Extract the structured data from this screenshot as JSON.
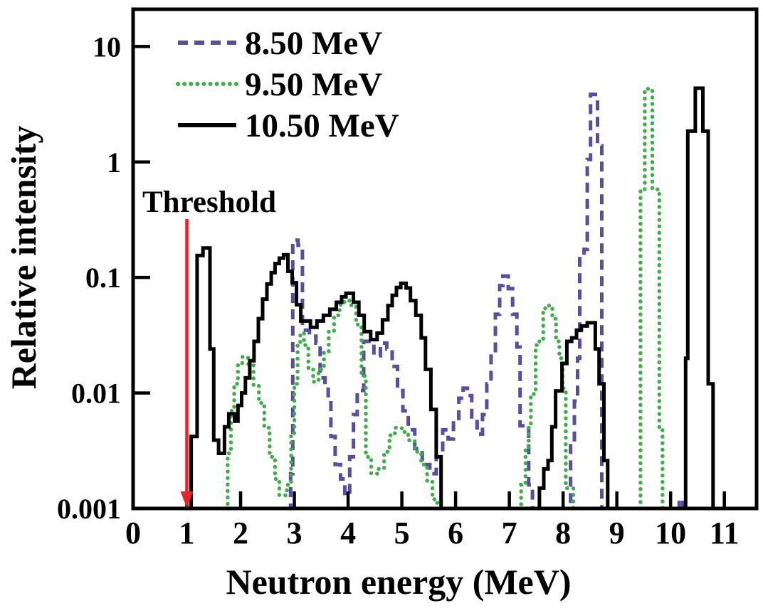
{
  "figure": {
    "background": "#ffffff",
    "frame_color": "#000000"
  },
  "chart_data": {
    "type": "step-histogram",
    "title": "",
    "xlabel": "Neutron energy (MeV)",
    "ylabel": "Relative intensity",
    "y_scale": "log",
    "xlim": [
      0,
      11.6
    ],
    "ylim": [
      0.001,
      21
    ],
    "grid": "off",
    "legend_position": "top-left-inside",
    "x_tick_values": [
      0,
      1,
      2,
      3,
      4,
      5,
      6,
      7,
      8,
      9,
      10,
      11
    ],
    "x_tick_labels": [
      "0",
      "1",
      "2",
      "3",
      "4",
      "5",
      "6",
      "7",
      "8",
      "9",
      "10",
      "11"
    ],
    "y_tick_values": [
      10,
      1,
      0.1,
      0.01,
      0.001
    ],
    "y_tick_labels": [
      "10",
      "1",
      "0.1",
      "0.01",
      "0.001"
    ],
    "threshold": {
      "label": "Threshold",
      "x": 1.0,
      "color": "#e8212a"
    },
    "below_axis_value": 0.0007,
    "levels_format": "each entry [energy_MeV, intensity]; intensity holds until next entry; 0.0007 means below visible axis",
    "series": [
      {
        "name": "8.50 MeV",
        "color": "#584da0",
        "style": "dashed",
        "dash": "14 9",
        "width": 5,
        "levels": [
          [
            2.93,
            0.002
          ],
          [
            2.97,
            0.21
          ],
          [
            3.07,
            0.19
          ],
          [
            3.15,
            0.035
          ],
          [
            3.28,
            0.031
          ],
          [
            3.4,
            0.027
          ],
          [
            3.48,
            0.0135
          ],
          [
            3.57,
            0.0115
          ],
          [
            3.63,
            0.0095
          ],
          [
            3.68,
            0.0042
          ],
          [
            3.76,
            0.0024
          ],
          [
            3.86,
            0.0018
          ],
          [
            3.94,
            0.0013
          ],
          [
            4.03,
            0.0028
          ],
          [
            4.1,
            0.0065
          ],
          [
            4.17,
            0.0105
          ],
          [
            4.29,
            0.028
          ],
          [
            4.48,
            0.021
          ],
          [
            4.6,
            0.027
          ],
          [
            4.72,
            0.024
          ],
          [
            4.82,
            0.017
          ],
          [
            4.92,
            0.0105
          ],
          [
            5.02,
            0.007
          ],
          [
            5.12,
            0.0048
          ],
          [
            5.24,
            0.0033
          ],
          [
            5.38,
            0.0024
          ],
          [
            5.52,
            0.002
          ],
          [
            5.64,
            0.0028
          ],
          [
            5.76,
            0.0048
          ],
          [
            5.86,
            0.004
          ],
          [
            5.96,
            0.0058
          ],
          [
            6.06,
            0.009
          ],
          [
            6.14,
            0.011
          ],
          [
            6.22,
            0.0095
          ],
          [
            6.3,
            0.0062
          ],
          [
            6.4,
            0.0044
          ],
          [
            6.5,
            0.0065
          ],
          [
            6.58,
            0.012
          ],
          [
            6.66,
            0.022
          ],
          [
            6.74,
            0.048
          ],
          [
            6.82,
            0.085
          ],
          [
            6.88,
            0.103
          ],
          [
            6.98,
            0.08
          ],
          [
            7.06,
            0.048
          ],
          [
            7.14,
            0.025
          ],
          [
            7.2,
            0.0052
          ],
          [
            7.36,
            0.0016
          ],
          [
            7.43,
            0.0007
          ],
          [
            8.14,
            0.0038
          ],
          [
            8.21,
            0.0085
          ],
          [
            8.27,
            0.02
          ],
          [
            8.31,
            0.155
          ],
          [
            8.39,
            0.175
          ],
          [
            8.45,
            1.05
          ],
          [
            8.51,
            3.85
          ],
          [
            8.64,
            1.38
          ],
          [
            8.72,
            0.0007
          ],
          [
            10.16,
            0.0012
          ],
          [
            10.23,
            0.0007
          ]
        ]
      },
      {
        "name": "9.50 MeV",
        "color": "#3fae4a",
        "style": "dotted",
        "dash": "0.1 9",
        "width": 5.5,
        "levels": [
          [
            1.76,
            0.003
          ],
          [
            1.82,
            0.007
          ],
          [
            1.88,
            0.012
          ],
          [
            1.95,
            0.018
          ],
          [
            2.03,
            0.0205
          ],
          [
            2.14,
            0.0178
          ],
          [
            2.24,
            0.0115
          ],
          [
            2.34,
            0.0082
          ],
          [
            2.44,
            0.005
          ],
          [
            2.54,
            0.0028
          ],
          [
            2.64,
            0.0018
          ],
          [
            2.72,
            0.0013
          ],
          [
            2.86,
            0.0016
          ],
          [
            2.94,
            0.0045
          ],
          [
            3.0,
            0.012
          ],
          [
            3.06,
            0.027
          ],
          [
            3.11,
            0.033
          ],
          [
            3.18,
            0.026
          ],
          [
            3.26,
            0.0165
          ],
          [
            3.35,
            0.0125
          ],
          [
            3.45,
            0.016
          ],
          [
            3.55,
            0.023
          ],
          [
            3.64,
            0.034
          ],
          [
            3.74,
            0.047
          ],
          [
            3.84,
            0.058
          ],
          [
            3.93,
            0.063
          ],
          [
            4.06,
            0.056
          ],
          [
            4.15,
            0.039
          ],
          [
            4.25,
            0.014
          ],
          [
            4.33,
            0.0028
          ],
          [
            4.43,
            0.002
          ],
          [
            4.55,
            0.0022
          ],
          [
            4.67,
            0.0031
          ],
          [
            4.77,
            0.0043
          ],
          [
            4.87,
            0.005
          ],
          [
            5.0,
            0.0046
          ],
          [
            5.12,
            0.0039
          ],
          [
            5.24,
            0.0031
          ],
          [
            5.36,
            0.0024
          ],
          [
            5.47,
            0.0017
          ],
          [
            5.57,
            0.0012
          ],
          [
            5.66,
            0.0007
          ],
          [
            7.22,
            0.0016
          ],
          [
            7.3,
            0.0032
          ],
          [
            7.36,
            0.005
          ],
          [
            7.4,
            0.0098
          ],
          [
            7.49,
            0.026
          ],
          [
            7.56,
            0.028
          ],
          [
            7.63,
            0.054
          ],
          [
            7.7,
            0.057
          ],
          [
            7.8,
            0.044
          ],
          [
            7.87,
            0.028
          ],
          [
            7.93,
            0.02
          ],
          [
            7.99,
            0.011
          ],
          [
            8.05,
            0.0015
          ],
          [
            8.19,
            0.0007
          ],
          [
            9.44,
            0.58
          ],
          [
            9.52,
            4.3
          ],
          [
            9.66,
            0.58
          ],
          [
            9.79,
            0.005
          ],
          [
            9.85,
            0.0007
          ]
        ]
      },
      {
        "name": "10.50 MeV",
        "color": "#000000",
        "style": "solid",
        "dash": "",
        "width": 5,
        "levels": [
          [
            1.08,
            0.0042
          ],
          [
            1.19,
            0.155
          ],
          [
            1.3,
            0.18
          ],
          [
            1.43,
            0.024
          ],
          [
            1.5,
            0.0039
          ],
          [
            1.59,
            0.003
          ],
          [
            1.7,
            0.0051
          ],
          [
            1.78,
            0.0066
          ],
          [
            1.89,
            0.0057
          ],
          [
            1.95,
            0.0078
          ],
          [
            2.02,
            0.01
          ],
          [
            2.09,
            0.0135
          ],
          [
            2.17,
            0.019
          ],
          [
            2.25,
            0.028
          ],
          [
            2.33,
            0.044
          ],
          [
            2.41,
            0.065
          ],
          [
            2.49,
            0.088
          ],
          [
            2.57,
            0.11
          ],
          [
            2.64,
            0.132
          ],
          [
            2.72,
            0.147
          ],
          [
            2.8,
            0.157
          ],
          [
            2.88,
            0.113
          ],
          [
            2.96,
            0.09
          ],
          [
            3.04,
            0.058
          ],
          [
            3.12,
            0.042
          ],
          [
            3.3,
            0.037
          ],
          [
            3.42,
            0.042
          ],
          [
            3.54,
            0.047
          ],
          [
            3.66,
            0.053
          ],
          [
            3.78,
            0.061
          ],
          [
            3.88,
            0.068
          ],
          [
            3.96,
            0.073
          ],
          [
            4.1,
            0.061
          ],
          [
            4.2,
            0.047
          ],
          [
            4.3,
            0.034
          ],
          [
            4.42,
            0.029
          ],
          [
            4.54,
            0.033
          ],
          [
            4.64,
            0.043
          ],
          [
            4.74,
            0.057
          ],
          [
            4.82,
            0.07
          ],
          [
            4.9,
            0.082
          ],
          [
            4.98,
            0.089
          ],
          [
            5.08,
            0.081
          ],
          [
            5.16,
            0.063
          ],
          [
            5.26,
            0.047
          ],
          [
            5.36,
            0.03
          ],
          [
            5.44,
            0.016
          ],
          [
            5.54,
            0.0072
          ],
          [
            5.64,
            0.0028
          ],
          [
            5.73,
            0.0007
          ],
          [
            7.56,
            0.0015
          ],
          [
            7.64,
            0.0022
          ],
          [
            7.72,
            0.0026
          ],
          [
            7.79,
            0.0051
          ],
          [
            7.86,
            0.0104
          ],
          [
            7.98,
            0.018
          ],
          [
            8.07,
            0.028
          ],
          [
            8.16,
            0.03
          ],
          [
            8.25,
            0.035
          ],
          [
            8.34,
            0.038
          ],
          [
            8.45,
            0.0405
          ],
          [
            8.6,
            0.024
          ],
          [
            8.67,
            0.012
          ],
          [
            8.76,
            0.0026
          ],
          [
            8.83,
            0.0007
          ],
          [
            10.28,
            0.02
          ],
          [
            10.32,
            1.85
          ],
          [
            10.46,
            4.35
          ],
          [
            10.6,
            1.85
          ],
          [
            10.7,
            0.012
          ],
          [
            10.79,
            0.0007
          ]
        ]
      }
    ]
  },
  "legend": {
    "items": [
      "8.50 MeV",
      "9.50 MeV",
      "10.50 MeV"
    ]
  }
}
